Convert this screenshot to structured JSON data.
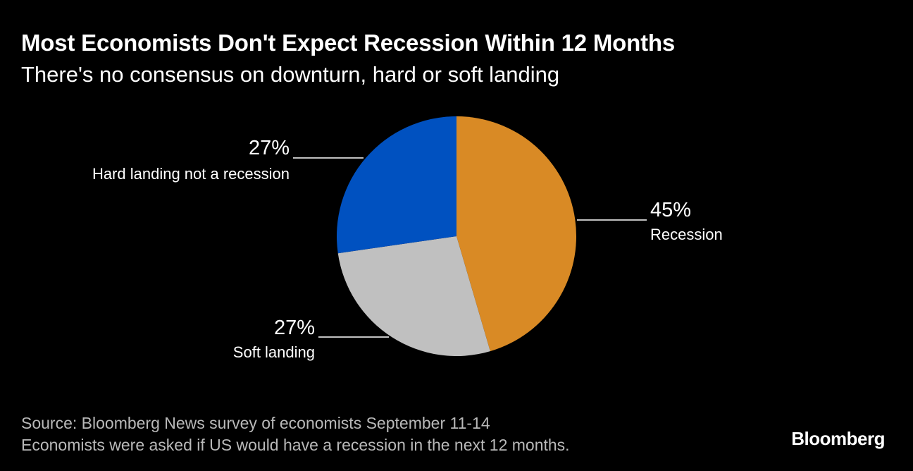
{
  "header": {
    "title": "Most Economists Don't Expect Recession Within 12 Months",
    "subtitle": "There's no consensus on downturn, hard or soft landing"
  },
  "footer": {
    "source": "Source: Bloomberg News survey of economists September 11-14",
    "note": "Economists were asked if US would have a recession in the next 12 months.",
    "brand": "Bloomberg"
  },
  "colors": {
    "background": "#000000",
    "recession": "#d98a25",
    "soft_landing": "#c0c0c0",
    "hard_landing": "#0051c0",
    "leader_line": "#ffffff",
    "footnote_text": "#b9b9b9"
  },
  "chart_data": {
    "type": "pie",
    "title": "Most Economists Don't Expect Recession Within 12 Months",
    "subtitle": "There's no consensus on downturn, hard or soft landing",
    "slices": [
      {
        "name": "Recession",
        "value": 45,
        "label": "45%",
        "color": "#d98a25"
      },
      {
        "name": "Soft landing",
        "value": 27,
        "label": "27%",
        "color": "#c0c0c0"
      },
      {
        "name": "Hard landing not a recession",
        "value": 27,
        "label": "27%",
        "color": "#0051c0"
      }
    ],
    "start_angle": "12 o'clock",
    "direction": "clockwise"
  }
}
